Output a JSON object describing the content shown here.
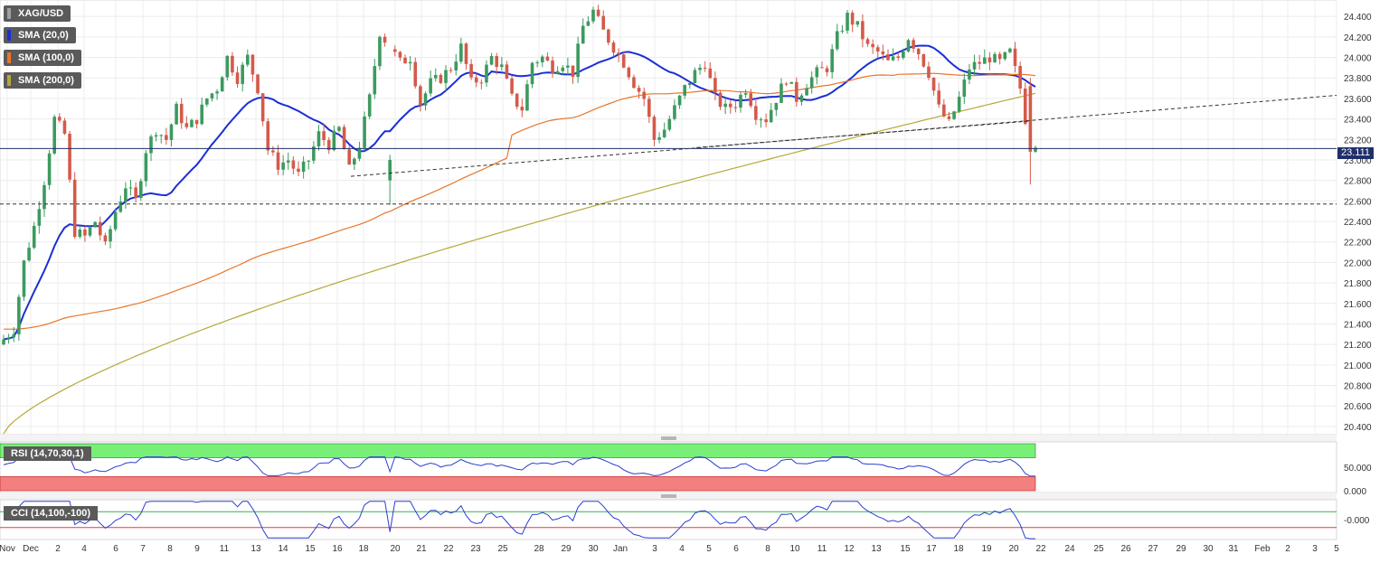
{
  "chart_data": {
    "type": "candlestick",
    "symbol": "XAG/USD",
    "indicators": [
      {
        "label": "SMA (20,0)",
        "color": "#1a2fd6"
      },
      {
        "label": "SMA (100,0)",
        "color": "#e8762a"
      },
      {
        "label": "SMA (200,0)",
        "color": "#b5a83a"
      }
    ],
    "last_price": "23.111",
    "y_ticks": [
      "24.400",
      "24.200",
      "24.000",
      "23.800",
      "23.600",
      "23.400",
      "23.200",
      "23.000",
      "22.800",
      "22.600",
      "22.400",
      "22.200",
      "22.000",
      "21.800",
      "21.600",
      "21.400",
      "21.200",
      "21.000",
      "20.800",
      "20.600",
      "20.400"
    ],
    "ylim": [
      20.32,
      24.56
    ],
    "x_labels": [
      "Nov",
      "Dec",
      "2",
      "4",
      "6",
      "7",
      "8",
      "9",
      "11",
      "13",
      "14",
      "15",
      "16",
      "18",
      "20",
      "21",
      "22",
      "23",
      "25",
      "28",
      "29",
      "30",
      "Jan",
      "3",
      "4",
      "5",
      "6",
      "8",
      "10",
      "11",
      "12",
      "13",
      "15",
      "17",
      "18",
      "19",
      "20",
      "22",
      "24",
      "25",
      "26",
      "27",
      "29",
      "30",
      "31",
      "Feb",
      "2",
      "3",
      "5"
    ],
    "horizontal_levels": [
      {
        "value": 23.111,
        "style": "solid",
        "color": "#1f2f6a"
      },
      {
        "value": 22.57,
        "style": "dashed",
        "color": "#333333"
      }
    ],
    "trendlines": [
      {
        "from_date": "Dec 16",
        "from_value": 22.84,
        "to_date": "Jan 25",
        "to_value": 23.63
      },
      {
        "from_date": "Jan 5",
        "from_value": 23.12,
        "to_date": "Jan 22",
        "to_value": 23.38
      }
    ],
    "rsi": {
      "label": "RSI (14,70,30,1)",
      "ticks": [
        "50.000",
        "0.000"
      ]
    },
    "cci": {
      "label": "CCI (14,100,-100)",
      "ticks": [
        "-0.000"
      ]
    }
  }
}
